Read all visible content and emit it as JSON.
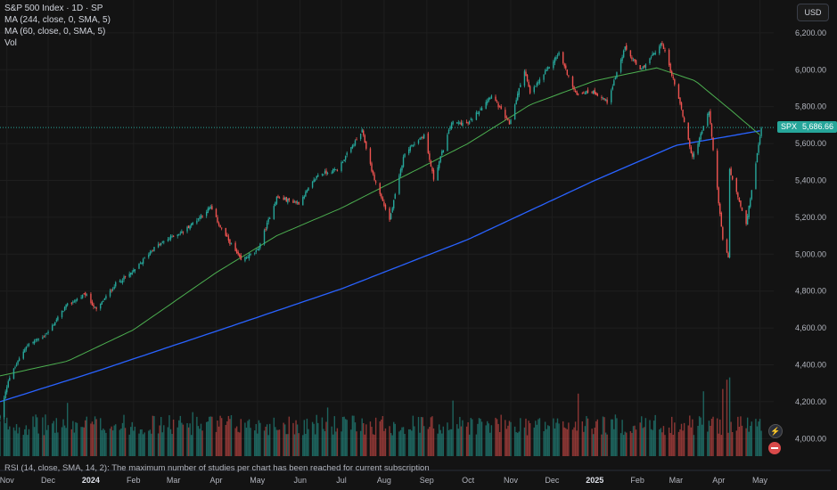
{
  "legend": {
    "title": "S&P 500 Index · 1D · SP",
    "ma1": "MA (244, close, 0, SMA, 5)",
    "ma2": "MA (60, close, 0, SMA, 5)",
    "vol": "Vol"
  },
  "rsi_note": "RSI (14, close, SMA, 14, 2): The maximum number of studies per chart has been reached for current subscription",
  "currency": "USD",
  "last_price": {
    "symbol": "SPX",
    "value": "5,686.66",
    "number": 5686.66
  },
  "colors": {
    "up": "#26a69a",
    "down": "#ef5350",
    "ma_long": "#2962ff",
    "ma_short": "#4caf50",
    "background": "#131313"
  },
  "chart_data": {
    "type": "candlestick",
    "y_axis": {
      "labels": [
        "6,200.00",
        "6,000.00",
        "5,800.00",
        "5,600.00",
        "5,400.00",
        "5,200.00",
        "5,000.00",
        "4,800.00",
        "4,600.00",
        "4,400.00",
        "4,200.00",
        "4,000.00"
      ],
      "values": [
        6200,
        6000,
        5800,
        5600,
        5400,
        5200,
        5000,
        4800,
        4600,
        4400,
        4200,
        4000
      ]
    },
    "ylim": [
      3905,
      6320
    ],
    "x_axis": {
      "labels": [
        "Nov",
        "Dec",
        "2024",
        "Feb",
        "Mar",
        "Apr",
        "May",
        "Jun",
        "Jul",
        "Aug",
        "Sep",
        "Oct",
        "Nov",
        "Dec",
        "2025",
        "Feb",
        "Mar",
        "Apr",
        "May"
      ],
      "dates": [
        "2023-11-01",
        "2023-12-01",
        "2024-01-01",
        "2024-02-01",
        "2024-03-01",
        "2024-04-01",
        "2024-05-01",
        "2024-06-01",
        "2024-07-01",
        "2024-08-01",
        "2024-09-01",
        "2024-10-01",
        "2024-11-01",
        "2024-12-01",
        "2025-01-01",
        "2025-02-01",
        "2025-03-01",
        "2025-04-01",
        "2025-05-01"
      ]
    },
    "x_range": [
      "2023-10-27",
      "2025-05-11"
    ],
    "close_anchors": [
      [
        "2023-10-27",
        4117
      ],
      [
        "2023-11-02",
        4318
      ],
      [
        "2023-11-15",
        4502
      ],
      [
        "2023-11-30",
        4568
      ],
      [
        "2023-12-14",
        4720
      ],
      [
        "2023-12-28",
        4783
      ],
      [
        "2024-01-05",
        4697
      ],
      [
        "2024-01-19",
        4839
      ],
      [
        "2024-02-01",
        4906
      ],
      [
        "2024-02-15",
        5029
      ],
      [
        "2024-02-29",
        5096
      ],
      [
        "2024-03-08",
        5123
      ],
      [
        "2024-03-28",
        5254
      ],
      [
        "2024-04-04",
        5147
      ],
      [
        "2024-04-19",
        4967
      ],
      [
        "2024-05-01",
        5018
      ],
      [
        "2024-05-15",
        5308
      ],
      [
        "2024-05-31",
        5277
      ],
      [
        "2024-06-14",
        5431
      ],
      [
        "2024-06-28",
        5460
      ],
      [
        "2024-07-16",
        5667
      ],
      [
        "2024-07-24",
        5427
      ],
      [
        "2024-08-05",
        5186
      ],
      [
        "2024-08-16",
        5554
      ],
      [
        "2024-08-30",
        5648
      ],
      [
        "2024-09-06",
        5408
      ],
      [
        "2024-09-19",
        5713
      ],
      [
        "2024-10-01",
        5708
      ],
      [
        "2024-10-18",
        5864
      ],
      [
        "2024-10-31",
        5705
      ],
      [
        "2024-11-11",
        6001
      ],
      [
        "2024-11-15",
        5870
      ],
      [
        "2024-12-06",
        6090
      ],
      [
        "2024-12-18",
        5872
      ],
      [
        "2024-12-31",
        5882
      ],
      [
        "2025-01-10",
        5827
      ],
      [
        "2025-01-23",
        6118
      ],
      [
        "2025-02-03",
        5994
      ],
      [
        "2025-02-19",
        6144
      ],
      [
        "2025-03-03",
        5849
      ],
      [
        "2025-03-13",
        5521
      ],
      [
        "2025-03-25",
        5776
      ],
      [
        "2025-04-04",
        5074
      ],
      [
        "2025-04-08",
        4982
      ],
      [
        "2025-04-09",
        5456
      ],
      [
        "2025-04-21",
        5158
      ],
      [
        "2025-05-02",
        5686
      ]
    ],
    "ma_long_anchors": [
      [
        "2023-10-27",
        4200
      ],
      [
        "2024-01-01",
        4355
      ],
      [
        "2024-04-01",
        4582
      ],
      [
        "2024-07-01",
        4812
      ],
      [
        "2024-10-01",
        5080
      ],
      [
        "2025-01-01",
        5400
      ],
      [
        "2025-03-01",
        5590
      ],
      [
        "2025-05-02",
        5670
      ]
    ],
    "ma_short_anchors": [
      [
        "2023-10-27",
        4340
      ],
      [
        "2023-12-15",
        4420
      ],
      [
        "2024-02-01",
        4590
      ],
      [
        "2024-04-01",
        4900
      ],
      [
        "2024-05-15",
        5100
      ],
      [
        "2024-07-01",
        5250
      ],
      [
        "2024-08-20",
        5440
      ],
      [
        "2024-10-01",
        5600
      ],
      [
        "2024-11-15",
        5810
      ],
      [
        "2025-01-01",
        5940
      ],
      [
        "2025-02-15",
        6010
      ],
      [
        "2025-03-15",
        5940
      ],
      [
        "2025-04-10",
        5780
      ],
      [
        "2025-05-02",
        5640
      ]
    ],
    "volume_events": [
      [
        "2023-12-15",
        2.3
      ],
      [
        "2024-03-15",
        1.9
      ],
      [
        "2024-06-21",
        2.1
      ],
      [
        "2024-09-20",
        2.4
      ],
      [
        "2024-12-20",
        2.7
      ],
      [
        "2025-03-21",
        2.8
      ],
      [
        "2025-04-04",
        2.9
      ],
      [
        "2025-04-07",
        3.3
      ],
      [
        "2025-04-09",
        3.4
      ]
    ]
  }
}
